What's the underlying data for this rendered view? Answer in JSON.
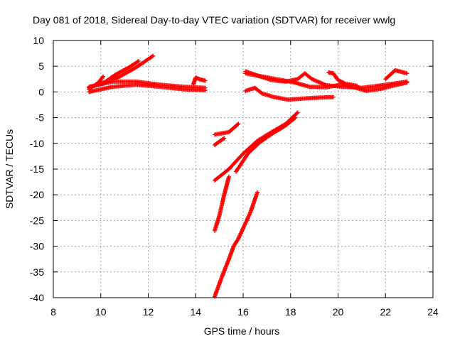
{
  "chart_data": {
    "type": "scatter",
    "title": "Day 081 of 2018, Sidereal Day-to-day VTEC variation (SDTVAR) for receiver wwlg",
    "xlabel": "GPS time / hours",
    "ylabel": "SDTVAR / TECUs",
    "xlim": [
      8,
      24
    ],
    "ylim": [
      -40,
      10
    ],
    "xticks": [
      "8",
      "10",
      "12",
      "14",
      "16",
      "18",
      "20",
      "22",
      "24"
    ],
    "yticks": [
      "10",
      "5",
      "0",
      "-5",
      "-10",
      "-15",
      "-20",
      "-25",
      "-30",
      "-35",
      "-40"
    ],
    "grid": true,
    "legend": "none",
    "marker": "plus",
    "color": "#ff0000",
    "tracks": [
      [
        [
          9.5,
          0.5
        ],
        [
          9.9,
          1.8
        ],
        [
          10.1,
          3.0
        ]
      ],
      [
        [
          9.5,
          0.8
        ],
        [
          10.2,
          2.0
        ],
        [
          10.6,
          3.3
        ],
        [
          11.2,
          4.8
        ],
        [
          11.6,
          6.0
        ]
      ],
      [
        [
          10.0,
          1.5
        ],
        [
          10.8,
          3.0
        ],
        [
          11.5,
          4.8
        ],
        [
          12.2,
          7.0
        ]
      ],
      [
        [
          9.5,
          1.0
        ],
        [
          10.5,
          2.0
        ],
        [
          11.5,
          2.0
        ],
        [
          12.5,
          1.4
        ],
        [
          13.5,
          1.0
        ],
        [
          14.4,
          0.8
        ]
      ],
      [
        [
          9.5,
          0.0
        ],
        [
          10.5,
          1.0
        ],
        [
          11.5,
          1.4
        ],
        [
          12.5,
          1.0
        ],
        [
          13.5,
          0.5
        ],
        [
          14.4,
          0.3
        ]
      ],
      [
        [
          13.9,
          1.5
        ],
        [
          14.0,
          2.8
        ],
        [
          14.2,
          2.4
        ],
        [
          14.4,
          2.2
        ]
      ],
      [
        [
          16.1,
          4.0
        ],
        [
          16.6,
          3.2
        ],
        [
          17.2,
          2.3
        ],
        [
          17.8,
          2.0
        ],
        [
          18.3,
          2.5
        ],
        [
          18.6,
          3.6
        ],
        [
          18.9,
          2.5
        ],
        [
          19.5,
          1.3
        ],
        [
          20.2,
          1.0
        ],
        [
          21.0,
          0.8
        ],
        [
          21.7,
          1.2
        ],
        [
          22.3,
          1.6
        ],
        [
          22.9,
          2.0
        ]
      ],
      [
        [
          16.1,
          3.6
        ],
        [
          16.8,
          3.0
        ],
        [
          17.5,
          2.4
        ],
        [
          18.1,
          1.9
        ],
        [
          18.8,
          1.0
        ],
        [
          19.5,
          0.9
        ],
        [
          20.1,
          1.4
        ],
        [
          20.6,
          1.0
        ],
        [
          21.2,
          0.2
        ],
        [
          21.8,
          0.6
        ],
        [
          22.4,
          1.3
        ],
        [
          22.9,
          1.8
        ]
      ],
      [
        [
          19.6,
          3.8
        ],
        [
          19.8,
          3.6
        ],
        [
          20.0,
          2.3
        ],
        [
          20.3,
          1.6
        ],
        [
          20.8,
          1.2
        ]
      ],
      [
        [
          22.0,
          2.5
        ],
        [
          22.4,
          4.2
        ],
        [
          22.6,
          4.0
        ],
        [
          22.9,
          3.6
        ]
      ],
      [
        [
          16.1,
          0.2
        ],
        [
          16.5,
          0.8
        ],
        [
          16.8,
          -0.3
        ],
        [
          17.3,
          -1.0
        ],
        [
          17.9,
          -1.5
        ],
        [
          18.5,
          -1.3
        ],
        [
          19.2,
          -1.1
        ],
        [
          19.8,
          -1.0
        ]
      ],
      [
        [
          14.8,
          -8.3
        ],
        [
          15.4,
          -7.8
        ],
        [
          15.8,
          -6.2
        ]
      ],
      [
        [
          14.8,
          -10.3
        ],
        [
          15.2,
          -9.0
        ]
      ],
      [
        [
          14.8,
          -17.2
        ],
        [
          15.4,
          -15.0
        ],
        [
          16.0,
          -12.0
        ],
        [
          16.6,
          -9.5
        ],
        [
          17.2,
          -7.8
        ],
        [
          17.8,
          -6.2
        ],
        [
          18.3,
          -4.0
        ]
      ],
      [
        [
          15.7,
          -15.5
        ],
        [
          16.2,
          -12.0
        ],
        [
          16.7,
          -9.8
        ],
        [
          17.2,
          -8.2
        ],
        [
          17.8,
          -6.5
        ],
        [
          18.2,
          -5.0
        ]
      ],
      [
        [
          14.8,
          -27.0
        ],
        [
          15.0,
          -24.0
        ],
        [
          15.2,
          -20.0
        ],
        [
          15.4,
          -16.5
        ]
      ],
      [
        [
          14.8,
          -39.8
        ],
        [
          15.1,
          -36.0
        ],
        [
          15.4,
          -32.5
        ],
        [
          15.6,
          -30.0
        ],
        [
          15.8,
          -28.5
        ],
        [
          16.1,
          -25.5
        ],
        [
          16.3,
          -23.5
        ],
        [
          16.6,
          -19.5
        ]
      ]
    ]
  }
}
